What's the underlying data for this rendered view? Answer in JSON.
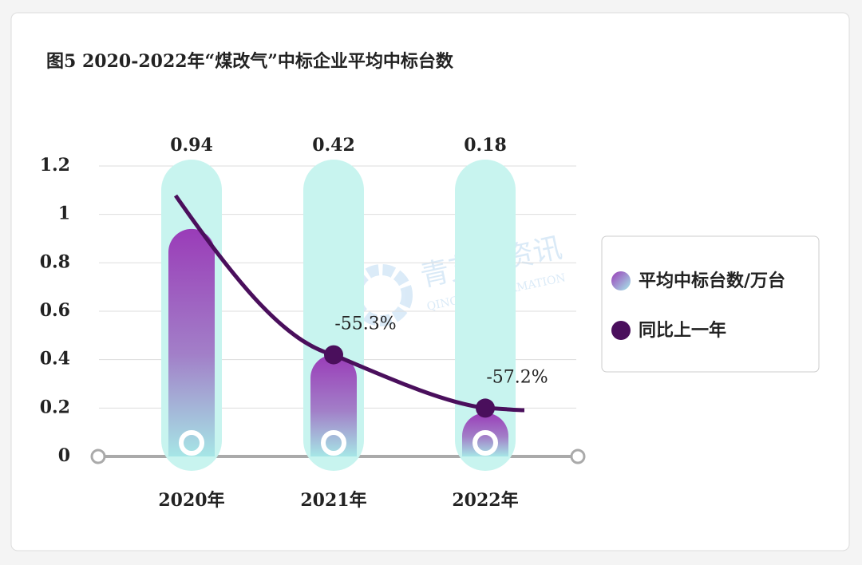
{
  "chart_data": {
    "type": "bar",
    "title": "图5 2020-2022年“煤改气”中标企业平均中标台数",
    "categories": [
      "2020年",
      "2021年",
      "2022年"
    ],
    "series": [
      {
        "name": "平均中标台数/万台",
        "color": "#9a3cb8",
        "values": [
          0.94,
          0.42,
          0.18
        ]
      },
      {
        "name": "同比上一年",
        "type": "line",
        "color": "#4a0f5c",
        "values": [
          null,
          -55.3,
          -57.2
        ],
        "value_labels": [
          null,
          "-55.3%",
          "-57.2%"
        ]
      }
    ],
    "ylim": [
      0,
      1.2
    ],
    "yticks": [
      0,
      0.2,
      0.4,
      0.6,
      0.8,
      1,
      1.2
    ],
    "grid": true,
    "legend": "right"
  },
  "watermark": {
    "text": "青艾尔资讯",
    "subtext": "QINGAR INFORMATION"
  }
}
